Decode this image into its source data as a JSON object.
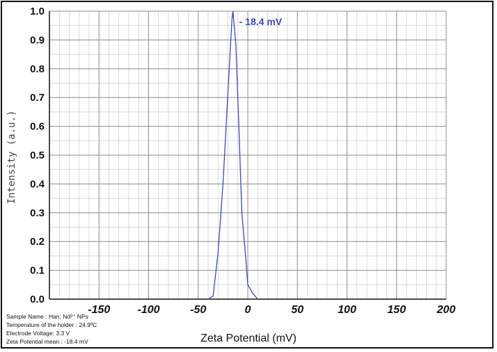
{
  "chart_data": {
    "type": "line",
    "xlabel": "Zeta Potential (mV)",
    "ylabel": "Intensity (a.u.)",
    "xlim": [
      -200,
      200
    ],
    "ylim": [
      0,
      1.0
    ],
    "x_ticks": [
      "-150",
      "-100",
      "-50",
      "0",
      "50",
      "100",
      "150",
      "200"
    ],
    "y_ticks": [
      "0.0",
      "0.1",
      "0.2",
      "0.3",
      "0.4",
      "0.5",
      "0.6",
      "0.7",
      "0.8",
      "0.9",
      "1.0"
    ],
    "grid": true,
    "series": [
      {
        "color": "#3b46c8",
        "x": [
          -40,
          -35,
          -30,
          -25,
          -20,
          -16,
          -15,
          -12,
          -9,
          -6,
          -3,
          0,
          5,
          10
        ],
        "y": [
          0.0,
          0.01,
          0.16,
          0.4,
          0.72,
          0.97,
          1.0,
          0.88,
          0.6,
          0.3,
          0.18,
          0.05,
          0.02,
          0.0
        ]
      }
    ],
    "annotation": {
      "text": "- 18.4 mV",
      "x": -15,
      "y": 1.0
    }
  },
  "info": {
    "sample_name": "Sample Name : Han: Nd³⁺ NPs",
    "temperature": "Temperature of the holder : 24.9ºC",
    "voltage": "Electrode Voltage: 3.3 V",
    "zeta_mean": "Zeta Potential mean : -18.4 mV"
  }
}
